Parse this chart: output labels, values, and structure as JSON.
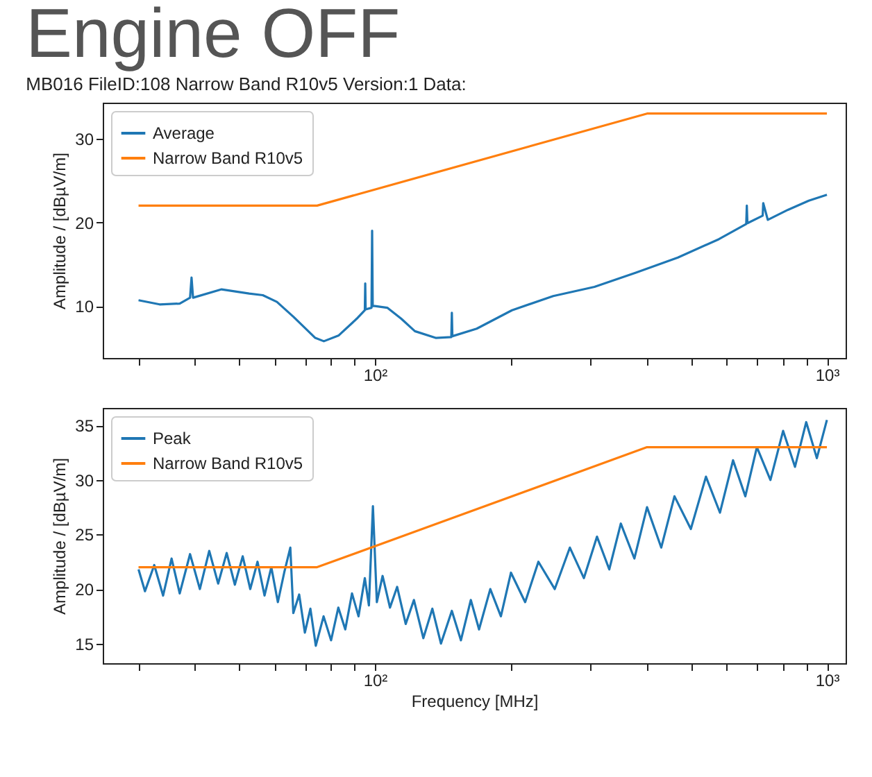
{
  "chart_data": [
    {
      "type": "line",
      "title": "Engine OFF",
      "subtitle": "MB016 FileID:108 Narrow Band R10v5 Version:1 Data:",
      "ylabel": "Amplitude / [dBµV/m]",
      "log": "x",
      "legend": "top left",
      "grid": false,
      "xlim": [
        25,
        1100
      ],
      "xticks": [
        {
          "value": 30,
          "label": null
        },
        {
          "value": 40,
          "label": null
        },
        {
          "value": 50,
          "label": null
        },
        {
          "value": 60,
          "label": null
        },
        {
          "value": 70,
          "label": null
        },
        {
          "value": 80,
          "label": null
        },
        {
          "value": 90,
          "label": null
        },
        {
          "value": 100,
          "label": "10²"
        },
        {
          "value": 200,
          "label": null
        },
        {
          "value": 300,
          "label": null
        },
        {
          "value": 400,
          "label": null
        },
        {
          "value": 500,
          "label": null
        },
        {
          "value": 600,
          "label": null
        },
        {
          "value": 700,
          "label": null
        },
        {
          "value": 800,
          "label": null
        },
        {
          "value": 900,
          "label": null
        },
        {
          "value": 1000,
          "label": "10³"
        }
      ],
      "ylim": [
        3.8,
        34.3
      ],
      "yticks": [
        10,
        20,
        30
      ],
      "series": [
        {
          "name": "Average",
          "color": "#1f77b4",
          "x": [
            30,
            33.4,
            37,
            39,
            39.3,
            39.6,
            45.8,
            52.7,
            56.5,
            60.7,
            66.1,
            73.8,
            77.1,
            83.2,
            91.2,
            95,
            95.2,
            95.4,
            98.3,
            98.6,
            98.9,
            100,
            106.5,
            114.3,
            122.6,
            136.3,
            147.6,
            148,
            148.4,
            168,
            201,
            248,
            306,
            378,
            468,
            577,
            663,
            665,
            667,
            721,
            723,
            740,
            820,
            912,
            1000
          ],
          "values": [
            10.7,
            10.2,
            10.3,
            11.0,
            13.4,
            11.0,
            12.0,
            11.5,
            11.3,
            10.5,
            8.7,
            6.2,
            5.8,
            6.5,
            8.5,
            9.5,
            12.7,
            9.6,
            9.8,
            19.0,
            10.0,
            10.0,
            9.8,
            8.5,
            7.0,
            6.2,
            6.3,
            9.2,
            6.4,
            7.3,
            9.5,
            11.2,
            12.3,
            14.0,
            15.8,
            18.0,
            19.8,
            22.0,
            19.9,
            20.8,
            22.3,
            20.3,
            21.5,
            22.6,
            23.3
          ]
        },
        {
          "name": "Narrow Band R10v5",
          "color": "#ff7f0e",
          "x": [
            30,
            74.5,
            400,
            1000
          ],
          "values": [
            22,
            22,
            33,
            33
          ]
        }
      ]
    },
    {
      "type": "line",
      "xlabel": "Frequency [MHz]",
      "ylabel": "Amplitude / [dBµV/m]",
      "log": "x",
      "legend": "top left",
      "grid": false,
      "xlim": [
        25,
        1100
      ],
      "xticks": [
        {
          "value": 30,
          "label": null
        },
        {
          "value": 40,
          "label": null
        },
        {
          "value": 50,
          "label": null
        },
        {
          "value": 60,
          "label": null
        },
        {
          "value": 70,
          "label": null
        },
        {
          "value": 80,
          "label": null
        },
        {
          "value": 90,
          "label": null
        },
        {
          "value": 100,
          "label": "10²"
        },
        {
          "value": 200,
          "label": null
        },
        {
          "value": 300,
          "label": null
        },
        {
          "value": 400,
          "label": null
        },
        {
          "value": 500,
          "label": null
        },
        {
          "value": 600,
          "label": null
        },
        {
          "value": 700,
          "label": null
        },
        {
          "value": 800,
          "label": null
        },
        {
          "value": 900,
          "label": null
        },
        {
          "value": 1000,
          "label": "10³"
        }
      ],
      "ylim": [
        13.2,
        36.6
      ],
      "yticks": [
        15,
        20,
        25,
        30,
        35
      ],
      "series": [
        {
          "name": "Peak",
          "color": "#1f77b4",
          "x": [
            30,
            31,
            32.5,
            34,
            35.5,
            37,
            39,
            41,
            43,
            45,
            47,
            49,
            51,
            53,
            55,
            57,
            59,
            61,
            63,
            65,
            66,
            68,
            70,
            72,
            74,
            77,
            80,
            83,
            86,
            89,
            92,
            95,
            97,
            99,
            101,
            104,
            108,
            112,
            117,
            122,
            128,
            134,
            140,
            148,
            155,
            163,
            170,
            180,
            190,
            200,
            215,
            230,
            250,
            270,
            290,
            310,
            330,
            350,
            375,
            400,
            430,
            460,
            500,
            540,
            580,
            620,
            660,
            700,
            750,
            800,
            850,
            900,
            950,
            1000
          ],
          "values": [
            21.8,
            19.8,
            22.2,
            19.4,
            22.8,
            19.6,
            23.2,
            20.0,
            23.5,
            20.5,
            23.3,
            20.4,
            23.0,
            20.0,
            22.5,
            19.4,
            22.0,
            18.8,
            21.5,
            23.8,
            17.8,
            19.5,
            16.0,
            18.2,
            14.8,
            17.5,
            15.3,
            18.3,
            16.3,
            19.6,
            17.5,
            21.0,
            18.5,
            27.6,
            18.8,
            21.2,
            18.3,
            20.2,
            16.8,
            19.0,
            15.5,
            18.2,
            15.0,
            18.0,
            15.3,
            19.0,
            16.3,
            20.0,
            17.5,
            21.5,
            18.8,
            22.5,
            20.0,
            23.8,
            21.0,
            24.8,
            21.8,
            26.0,
            22.8,
            27.5,
            23.8,
            28.5,
            25.5,
            30.3,
            27.0,
            31.8,
            28.5,
            33.0,
            30.0,
            34.5,
            31.2,
            35.3,
            32.0,
            35.5
          ]
        },
        {
          "name": "Narrow Band R10v5",
          "color": "#ff7f0e",
          "x": [
            30,
            74.5,
            400,
            1000
          ],
          "values": [
            22,
            22,
            33,
            33
          ]
        }
      ]
    }
  ]
}
